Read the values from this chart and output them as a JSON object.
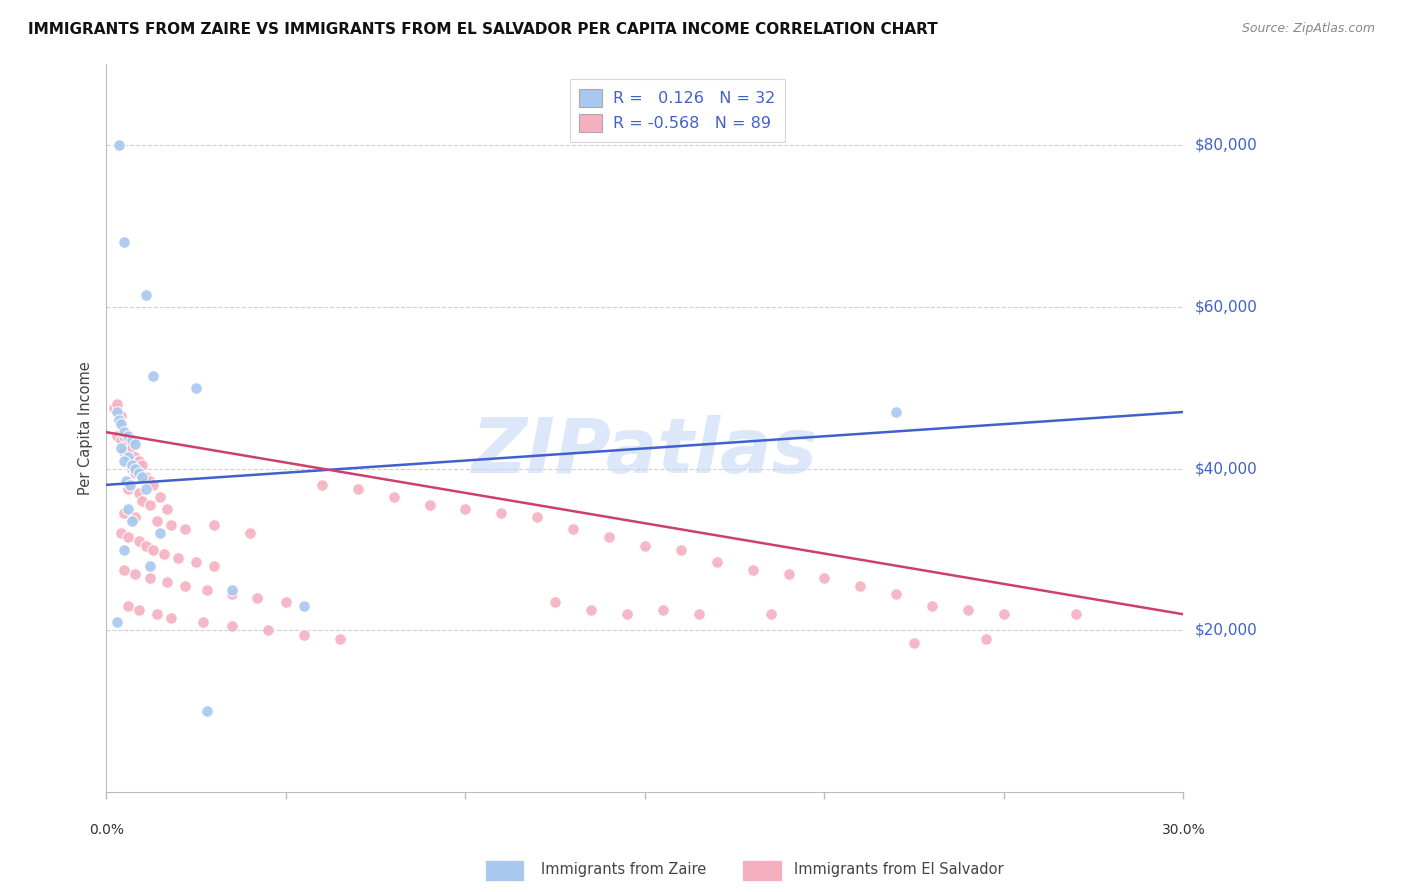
{
  "title": "IMMIGRANTS FROM ZAIRE VS IMMIGRANTS FROM EL SALVADOR PER CAPITA INCOME CORRELATION CHART",
  "source": "Source: ZipAtlas.com",
  "ylabel": "Per Capita Income",
  "xlim": [
    0.0,
    30.0
  ],
  "ylim": [
    0,
    90000
  ],
  "yticks": [
    20000,
    40000,
    60000,
    80000
  ],
  "ytick_labels": [
    "$20,000",
    "$40,000",
    "$60,000",
    "$80,000"
  ],
  "grid_color": "#d0d0d0",
  "background_color": "#ffffff",
  "zaire_color": "#a8c8f0",
  "salvador_color": "#f5b0c0",
  "zaire_line_color": "#4060cc",
  "salvador_line_color": "#cc4070",
  "watermark": "ZIPatlas",
  "zaire_points": [
    [
      0.35,
      80000
    ],
    [
      0.5,
      68000
    ],
    [
      1.1,
      61500
    ],
    [
      1.3,
      51500
    ],
    [
      2.5,
      50000
    ],
    [
      0.3,
      47000
    ],
    [
      0.35,
      46000
    ],
    [
      0.4,
      45500
    ],
    [
      0.5,
      44500
    ],
    [
      0.6,
      44000
    ],
    [
      0.7,
      43500
    ],
    [
      0.8,
      43000
    ],
    [
      0.4,
      42500
    ],
    [
      0.6,
      41500
    ],
    [
      0.5,
      41000
    ],
    [
      0.7,
      40500
    ],
    [
      0.8,
      40000
    ],
    [
      0.9,
      39500
    ],
    [
      1.0,
      39000
    ],
    [
      0.55,
      38500
    ],
    [
      0.65,
      38000
    ],
    [
      1.1,
      37500
    ],
    [
      0.6,
      35000
    ],
    [
      0.7,
      33500
    ],
    [
      1.5,
      32000
    ],
    [
      0.5,
      30000
    ],
    [
      1.2,
      28000
    ],
    [
      3.5,
      25000
    ],
    [
      5.5,
      23000
    ],
    [
      0.3,
      21000
    ],
    [
      2.8,
      10000
    ],
    [
      22.0,
      47000
    ]
  ],
  "salvador_points": [
    [
      0.2,
      47500
    ],
    [
      0.3,
      48000
    ],
    [
      0.4,
      46500
    ],
    [
      0.3,
      44000
    ],
    [
      0.4,
      43500
    ],
    [
      0.5,
      44000
    ],
    [
      0.6,
      43000
    ],
    [
      0.5,
      42000
    ],
    [
      0.7,
      42500
    ],
    [
      0.8,
      41500
    ],
    [
      0.9,
      41000
    ],
    [
      1.0,
      40500
    ],
    [
      0.7,
      40000
    ],
    [
      0.8,
      39500
    ],
    [
      1.1,
      39000
    ],
    [
      1.2,
      38500
    ],
    [
      1.3,
      38000
    ],
    [
      0.6,
      37500
    ],
    [
      0.9,
      37000
    ],
    [
      1.5,
      36500
    ],
    [
      1.0,
      36000
    ],
    [
      1.2,
      35500
    ],
    [
      1.7,
      35000
    ],
    [
      0.5,
      34500
    ],
    [
      0.8,
      34000
    ],
    [
      1.4,
      33500
    ],
    [
      1.8,
      33000
    ],
    [
      2.2,
      32500
    ],
    [
      0.4,
      32000
    ],
    [
      0.6,
      31500
    ],
    [
      0.9,
      31000
    ],
    [
      1.1,
      30500
    ],
    [
      1.3,
      30000
    ],
    [
      1.6,
      29500
    ],
    [
      2.0,
      29000
    ],
    [
      2.5,
      28500
    ],
    [
      3.0,
      28000
    ],
    [
      0.5,
      27500
    ],
    [
      0.8,
      27000
    ],
    [
      1.2,
      26500
    ],
    [
      1.7,
      26000
    ],
    [
      2.2,
      25500
    ],
    [
      2.8,
      25000
    ],
    [
      3.5,
      24500
    ],
    [
      4.2,
      24000
    ],
    [
      5.0,
      23500
    ],
    [
      0.6,
      23000
    ],
    [
      0.9,
      22500
    ],
    [
      1.4,
      22000
    ],
    [
      1.8,
      21500
    ],
    [
      2.7,
      21000
    ],
    [
      3.5,
      20500
    ],
    [
      4.5,
      20000
    ],
    [
      5.5,
      19500
    ],
    [
      6.5,
      19000
    ],
    [
      3.0,
      33000
    ],
    [
      4.0,
      32000
    ],
    [
      6.0,
      38000
    ],
    [
      7.0,
      37500
    ],
    [
      8.0,
      36500
    ],
    [
      9.0,
      35500
    ],
    [
      10.0,
      35000
    ],
    [
      11.0,
      34500
    ],
    [
      12.0,
      34000
    ],
    [
      13.0,
      32500
    ],
    [
      14.0,
      31500
    ],
    [
      15.0,
      30500
    ],
    [
      16.0,
      30000
    ],
    [
      17.0,
      28500
    ],
    [
      18.0,
      27500
    ],
    [
      19.0,
      27000
    ],
    [
      20.0,
      26500
    ],
    [
      21.0,
      25500
    ],
    [
      22.0,
      24500
    ],
    [
      23.0,
      23000
    ],
    [
      24.0,
      22500
    ],
    [
      25.0,
      22000
    ],
    [
      15.5,
      22500
    ],
    [
      16.5,
      22000
    ],
    [
      18.5,
      22000
    ],
    [
      12.5,
      23500
    ],
    [
      13.5,
      22500
    ],
    [
      27.0,
      22000
    ],
    [
      22.5,
      18500
    ],
    [
      24.5,
      19000
    ],
    [
      14.5,
      22000
    ]
  ],
  "zaire_trendline": [
    [
      0,
      38000
    ],
    [
      30,
      47000
    ]
  ],
  "salvador_trendline": [
    [
      0,
      44500
    ],
    [
      30,
      22000
    ]
  ]
}
